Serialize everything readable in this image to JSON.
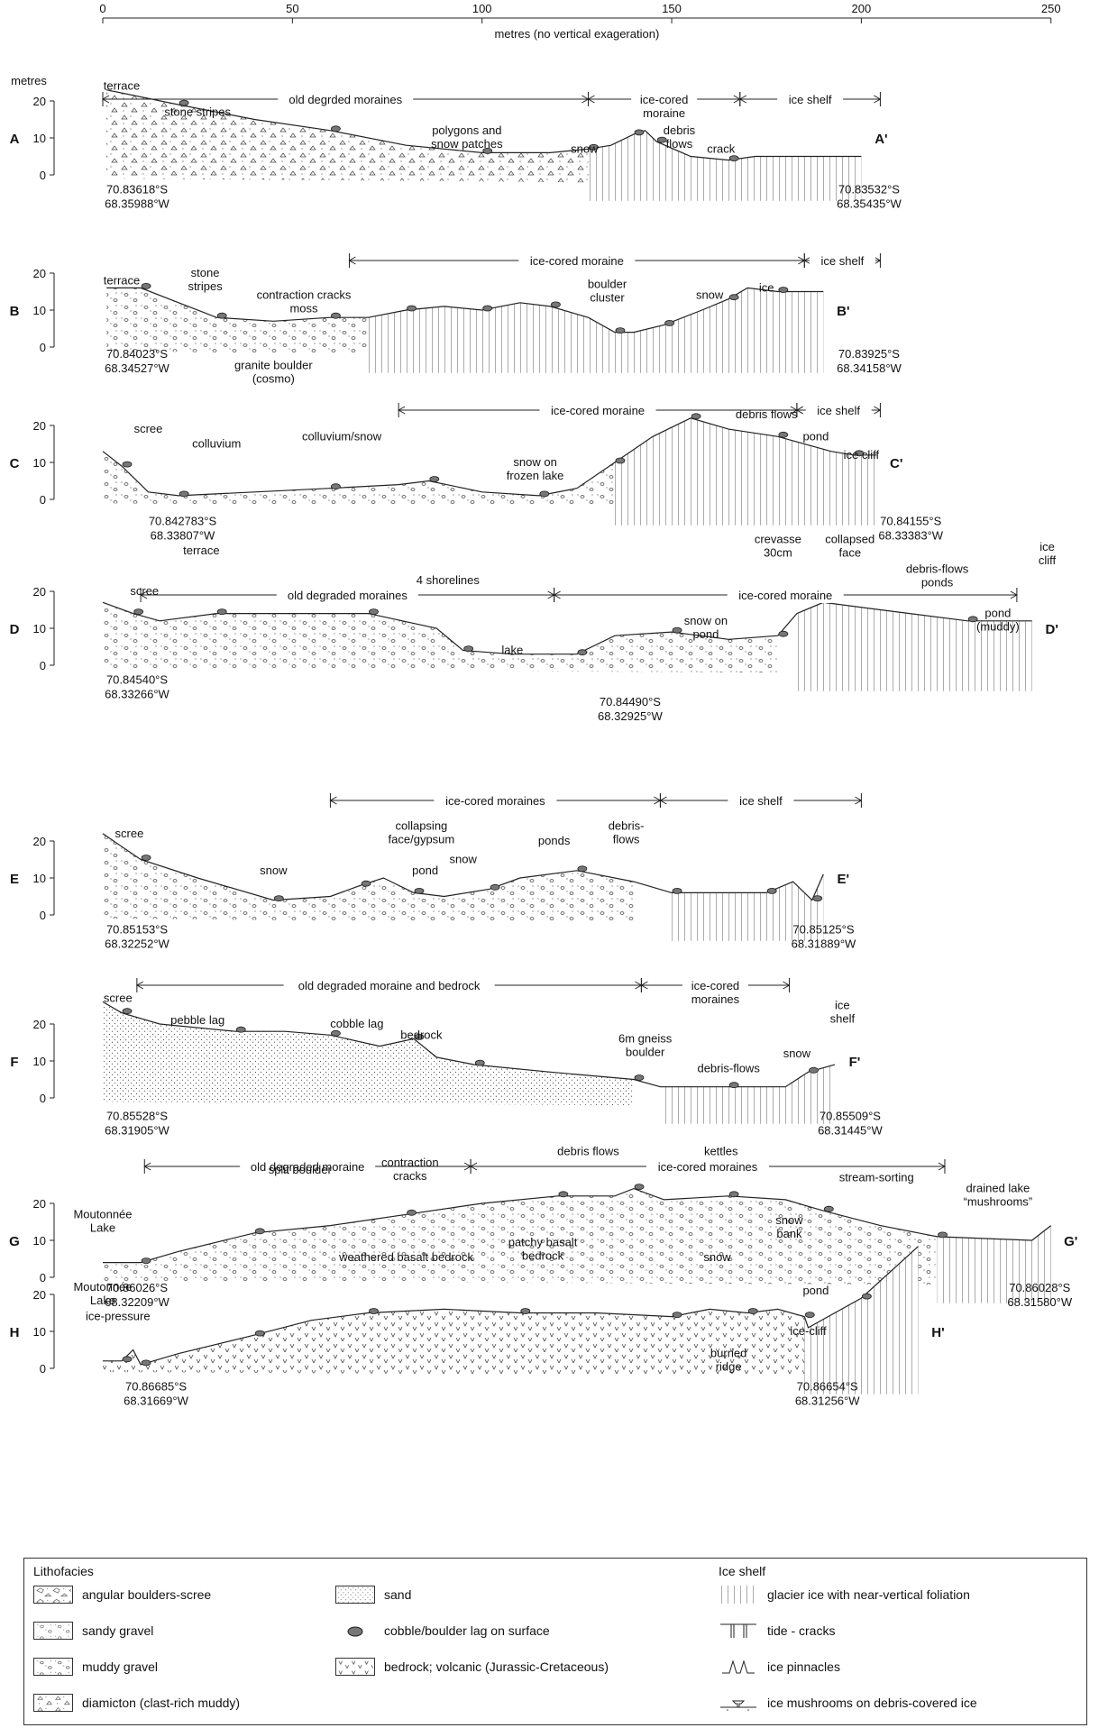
{
  "axis": {
    "ticks": [
      "0",
      "50",
      "100",
      "150",
      "200",
      "250"
    ],
    "title": "metres (no vertical exageration)",
    "y_title": "metres",
    "y_ticks": [
      "20",
      "10",
      "0"
    ]
  },
  "profiles": [
    {
      "id": "A",
      "end": "A'",
      "spans": [
        {
          "text": "old degrded moraines",
          "x0": 0,
          "x1": 128
        },
        {
          "text": "ice-cored\nmoraine",
          "x0": 128,
          "x1": 168
        },
        {
          "text": "ice shelf",
          "x0": 168,
          "x1": 205
        }
      ],
      "labels": [
        {
          "text": "terrace",
          "x": 5,
          "y": 23
        },
        {
          "text": "stone stripes",
          "x": 25,
          "y": 16
        },
        {
          "text": "polygons and\nsnow patches",
          "x": 96,
          "y": 11
        },
        {
          "text": "snow",
          "x": 127,
          "y": 6
        },
        {
          "text": "debris\nflows",
          "x": 152,
          "y": 11
        },
        {
          "text": "crack",
          "x": 163,
          "y": 6
        }
      ],
      "coords": [
        {
          "text": "70.83618°S\n68.35988°W",
          "x": 0,
          "y": -3
        },
        {
          "text": "70.83532°S\n68.35435°W",
          "x": 193,
          "y": -3
        }
      ]
    },
    {
      "id": "B",
      "end": "B'",
      "spans": [
        {
          "text": "ice-cored moraine",
          "x0": 65,
          "x1": 185
        },
        {
          "text": "ice shelf",
          "x0": 185,
          "x1": 205
        }
      ],
      "labels": [
        {
          "text": "terrace",
          "x": 5,
          "y": 17
        },
        {
          "text": "stone\nstripes",
          "x": 27,
          "y": 19
        },
        {
          "text": "contraction cracks\nmoss",
          "x": 53,
          "y": 13
        },
        {
          "text": "boulder\ncluster",
          "x": 133,
          "y": 16
        },
        {
          "text": "snow",
          "x": 160,
          "y": 13
        },
        {
          "text": "ice",
          "x": 175,
          "y": 15
        },
        {
          "text": "granite boulder\n(cosmo)",
          "x": 45,
          "y": -6
        }
      ],
      "coords": [
        {
          "text": "70.84023°S\n68.34527°W",
          "x": 0,
          "y": -1
        },
        {
          "text": "70.83925°S\n68.34158°W",
          "x": 193,
          "y": -1
        }
      ]
    },
    {
      "id": "C",
      "end": "C'",
      "spans": [
        {
          "text": "ice-cored moraine",
          "x0": 78,
          "x1": 183
        },
        {
          "text": "ice shelf",
          "x0": 183,
          "x1": 205
        }
      ],
      "labels": [
        {
          "text": "scree",
          "x": 12,
          "y": 18
        },
        {
          "text": "colluvium",
          "x": 30,
          "y": 14
        },
        {
          "text": "colluvium/snow",
          "x": 63,
          "y": 16
        },
        {
          "text": "snow on\nfrozen lake",
          "x": 114,
          "y": 9
        },
        {
          "text": "debris flows",
          "x": 175,
          "y": 22
        },
        {
          "text": "pond",
          "x": 188,
          "y": 16
        },
        {
          "text": "ice cliff",
          "x": 200,
          "y": 11
        }
      ],
      "coords": [
        {
          "text": "70.842783°S\n68.33807°W",
          "x": 12,
          "y": -5
        },
        {
          "text": "70.84155°S\n68.33383°W",
          "x": 204,
          "y": -5
        }
      ]
    },
    {
      "id": "D",
      "end": "D'",
      "spans": [
        {
          "text": "old degraded moraines",
          "x0": 10,
          "x1": 119
        },
        {
          "text": "ice-cored moraine",
          "x0": 119,
          "x1": 241
        }
      ],
      "labels": [
        {
          "text": "terrace",
          "x": 26,
          "y": 30
        },
        {
          "text": "scree",
          "x": 11,
          "y": 19
        },
        {
          "text": "4 shorelines",
          "x": 91,
          "y": 22
        },
        {
          "text": "lake",
          "x": 108,
          "y": 3
        },
        {
          "text": "snow on\npond",
          "x": 159,
          "y": 11
        },
        {
          "text": "crevasse\n30cm",
          "x": 178,
          "y": 33
        },
        {
          "text": "collapsed\nface",
          "x": 197,
          "y": 33
        },
        {
          "text": "debris-flows\nponds",
          "x": 220,
          "y": 25
        },
        {
          "text": "pond\n(muddy)",
          "x": 236,
          "y": 13
        },
        {
          "text": "ice\ncliff",
          "x": 249,
          "y": 31
        }
      ],
      "coords": [
        {
          "text": "70.84540°S\n68.33266°W",
          "x": 0,
          "y": -3
        },
        {
          "text": "70.84490°S\n68.32925°W",
          "x": 130,
          "y": -9
        }
      ]
    },
    {
      "id": "E",
      "end": "E'",
      "spans": [
        {
          "text": "ice-cored moraines",
          "x0": 60,
          "x1": 147
        },
        {
          "text": "ice shelf",
          "x0": 147,
          "x1": 200
        }
      ],
      "labels": [
        {
          "text": "scree",
          "x": 7,
          "y": 21
        },
        {
          "text": "snow",
          "x": 45,
          "y": 11
        },
        {
          "text": "collapsing\nface/gypsum",
          "x": 84,
          "y": 23
        },
        {
          "text": "pond",
          "x": 85,
          "y": 11
        },
        {
          "text": "snow",
          "x": 95,
          "y": 14
        },
        {
          "text": "ponds",
          "x": 119,
          "y": 19
        },
        {
          "text": "debris-\nflows",
          "x": 138,
          "y": 23
        }
      ],
      "coords": [
        {
          "text": "70.85153°S\n68.32252°W",
          "x": 0,
          "y": -3
        },
        {
          "text": "70.85125°S\n68.31889°W",
          "x": 181,
          "y": -3
        }
      ]
    },
    {
      "id": "F",
      "end": "F'",
      "spans": [
        {
          "text": "old degraded moraine and bedrock",
          "x0": 9,
          "x1": 142
        },
        {
          "text": "ice-cored\nmoraines",
          "x0": 142,
          "x1": 181
        }
      ],
      "labels": [
        {
          "text": "scree",
          "x": 4,
          "y": 26
        },
        {
          "text": "pebble lag",
          "x": 25,
          "y": 20
        },
        {
          "text": "cobble lag",
          "x": 67,
          "y": 19
        },
        {
          "text": "bedrock",
          "x": 84,
          "y": 16
        },
        {
          "text": "6m gneiss\nboulder",
          "x": 143,
          "y": 15
        },
        {
          "text": "debris-flows",
          "x": 165,
          "y": 7
        },
        {
          "text": "snow",
          "x": 183,
          "y": 11
        },
        {
          "text": "ice\nshelf",
          "x": 195,
          "y": 24
        }
      ],
      "coords": [
        {
          "text": "70.85528°S\n68.31905°W",
          "x": 0,
          "y": -4
        },
        {
          "text": "70.85509°S\n68.31445°W",
          "x": 188,
          "y": -4
        }
      ]
    },
    {
      "id": "G",
      "end": "G'",
      "spans": [
        {
          "text": "old degraded moraine",
          "x0": 11,
          "x1": 97
        },
        {
          "text": "ice-cored moraines",
          "x0": 97,
          "x1": 222
        }
      ],
      "labels": [
        {
          "text": "Moutonnée\nLake",
          "x": 0,
          "y": 16
        },
        {
          "text": "split boulder",
          "x": 52,
          "y": 28
        },
        {
          "text": "contraction\ncracks",
          "x": 81,
          "y": 30
        },
        {
          "text": "debris flows",
          "x": 128,
          "y": 33
        },
        {
          "text": "kettles",
          "x": 163,
          "y": 33
        },
        {
          "text": "stream-sorting",
          "x": 204,
          "y": 26
        },
        {
          "text": "drained lake\n“mushrooms”",
          "x": 236,
          "y": 23
        }
      ],
      "coords": [
        {
          "text": "70.86026°S\n68.32209°W",
          "x": 0,
          "y": -2
        },
        {
          "text": "70.86028°S\n68.31580°W",
          "x": 238,
          "y": -2
        }
      ]
    },
    {
      "id": "H",
      "end": "H'",
      "spans": [],
      "labels": [
        {
          "text": "Moutonnée\nLake",
          "x": 0,
          "y": 21
        },
        {
          "text": "ice-pressure",
          "x": 4,
          "y": 13
        },
        {
          "text": "weathered basalt bedrock",
          "x": 80,
          "y": 29
        },
        {
          "text": "patchy basalt\nbedrock",
          "x": 116,
          "y": 33
        },
        {
          "text": "snow",
          "x": 162,
          "y": 29
        },
        {
          "text": "snow\nbank",
          "x": 181,
          "y": 39
        },
        {
          "text": "pond",
          "x": 188,
          "y": 20
        },
        {
          "text": "ice-cliff",
          "x": 186,
          "y": 9
        },
        {
          "text": "burried\nridge",
          "x": 165,
          "y": 3
        }
      ],
      "coords": [
        {
          "text": "70.86685°S\n68.31669°W",
          "x": 5,
          "y": -4
        },
        {
          "text": "70.86654°S\n68.31256°W",
          "x": 182,
          "y": -4
        }
      ]
    }
  ],
  "legend": {
    "lithofacies_title": "Lithofacies",
    "ice_title": "Ice shelf",
    "col1": [
      {
        "label": "angular boulders-scree",
        "icon": "angular-boulders-swatch"
      },
      {
        "label": "sandy gravel",
        "icon": "sandy-gravel-swatch"
      },
      {
        "label": "muddy gravel",
        "icon": "muddy-gravel-swatch"
      },
      {
        "label": "diamicton (clast-rich muddy)",
        "icon": "diamicton-swatch"
      }
    ],
    "col2": [
      {
        "label": "sand",
        "icon": "sand-swatch"
      },
      {
        "label": "cobble/boulder lag on surface",
        "icon": "boulder-lag-icon"
      },
      {
        "label": "bedrock; volcanic (Jurassic-Cretaceous)",
        "icon": "bedrock-swatch"
      }
    ],
    "col3": [
      {
        "label": "glacier ice with near-vertical foliation",
        "icon": "glacier-ice-swatch"
      },
      {
        "label": "tide - cracks",
        "icon": "tide-cracks-icon"
      },
      {
        "label": "ice pinnacles",
        "icon": "ice-pinnacles-icon"
      },
      {
        "label": "ice mushrooms on debris-covered ice",
        "icon": "ice-mushrooms-icon"
      }
    ]
  }
}
